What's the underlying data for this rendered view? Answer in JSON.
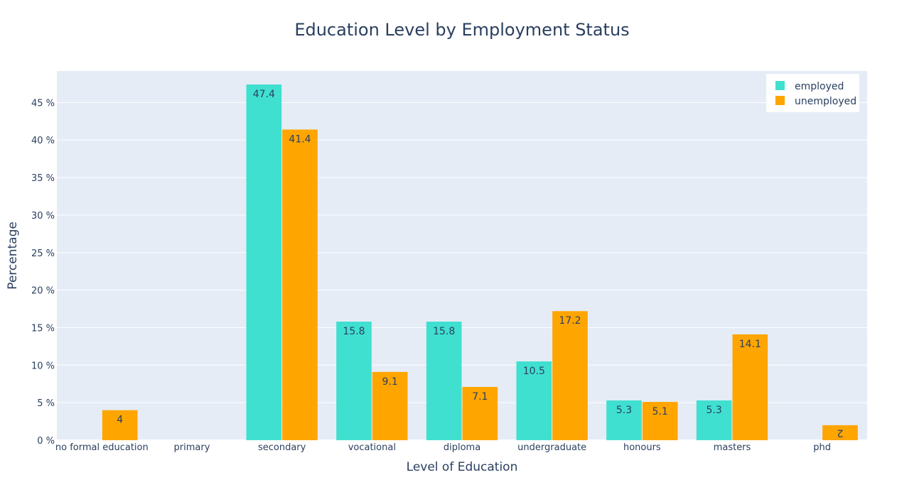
{
  "chart_data": {
    "type": "bar",
    "title": "Education Level by Employment Status",
    "xlabel": "Level of Education",
    "ylabel": "Percentage",
    "categories": [
      "no formal education",
      "primary",
      "secondary",
      "vocational",
      "diploma",
      "undergraduate",
      "honours",
      "masters",
      "phd"
    ],
    "series": [
      {
        "name": "employed",
        "color": "#40e0d0",
        "values": [
          null,
          null,
          47.4,
          15.8,
          15.8,
          10.5,
          5.3,
          5.3,
          null
        ],
        "labels": [
          "",
          "",
          "47.4",
          "15.8",
          "15.8",
          "10.5",
          "5.3",
          "5.3",
          ""
        ]
      },
      {
        "name": "unemployed",
        "color": "#ffa500",
        "values": [
          4,
          null,
          41.4,
          9.1,
          7.1,
          17.2,
          5.1,
          14.1,
          2
        ],
        "labels": [
          "4",
          "",
          "41.4",
          "9.1",
          "7.1",
          "17.2",
          "5.1",
          "14.1",
          "2"
        ]
      }
    ],
    "ylim": [
      0,
      49.2
    ],
    "yticks": [
      0,
      5,
      10,
      15,
      20,
      25,
      30,
      35,
      40,
      45
    ],
    "ytick_labels": [
      "0 %",
      "5 %",
      "10 %",
      "15 %",
      "20 %",
      "25 %",
      "30 %",
      "35 %",
      "40 %",
      "45 %"
    ],
    "grid": true,
    "legend_position": "top-right",
    "plot_background": "#e5ecf6",
    "text_color": "#2a3f5f"
  }
}
